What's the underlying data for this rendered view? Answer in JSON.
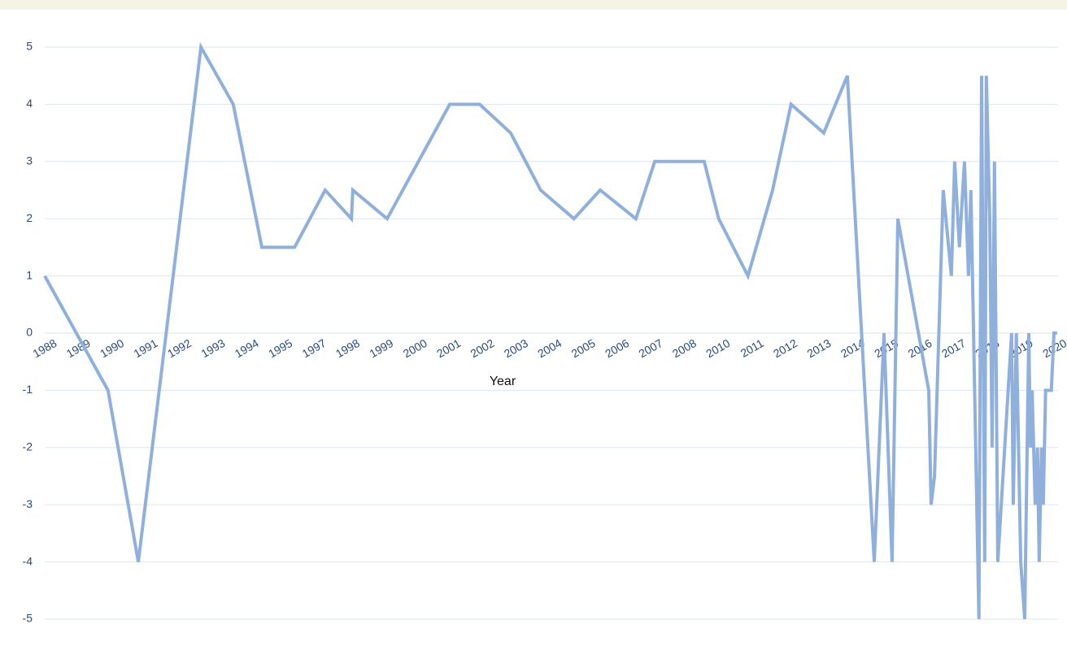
{
  "chart_data": {
    "type": "line",
    "x_label": "Year",
    "x": [
      0,
      1.88,
      2.78,
      4.64,
      5.6,
      6.45,
      7.42,
      8.33,
      9.11,
      9.15,
      10.17,
      12.03,
      12.92,
      13.84,
      14.73,
      15.72,
      16.5,
      17.56,
      18.12,
      19.59,
      20.02,
      20.89,
      21.62,
      22.17,
      23.14,
      23.84,
      24.64,
      24.93,
      25.17,
      25.34,
      26.26,
      26.33,
      26.43,
      26.69,
      26.93,
      27.03,
      27.17,
      27.32,
      27.44,
      27.51,
      27.75,
      27.83,
      27.92,
      27.97,
      28.07,
      28.14,
      28.21,
      28.31,
      28.72,
      28.77,
      28.86,
      28.99,
      29.11,
      29.23,
      29.28,
      29.33,
      29.42,
      29.49,
      29.54,
      29.61,
      29.66,
      29.73,
      29.9,
      29.98,
      30.07
    ],
    "values": [
      1,
      -1,
      -4,
      5,
      4,
      1.5,
      1.5,
      2.5,
      2,
      2.5,
      2,
      4,
      4,
      3.5,
      2.5,
      2,
      2.5,
      2,
      3,
      3,
      2,
      1,
      2.5,
      4,
      3.5,
      4.5,
      -4,
      0,
      -4,
      2,
      -1,
      -3,
      -2.5,
      2.5,
      1,
      3,
      1.5,
      3,
      1,
      2.5,
      -5,
      4.5,
      -4,
      4.5,
      2,
      -2,
      3,
      -4,
      0,
      -3,
      0,
      -4,
      -5,
      0,
      -2,
      -1,
      -3,
      -2,
      -4,
      -2,
      -3,
      -1,
      -1,
      0,
      0
    ],
    "color": "#8fb0dd",
    "xlim": [
      0,
      30.1
    ],
    "xticks": [
      {
        "value": 0,
        "label": "1988"
      },
      {
        "value": 1,
        "label": "1989"
      },
      {
        "value": 2,
        "label": "1990"
      },
      {
        "value": 3,
        "label": "1991"
      },
      {
        "value": 4,
        "label": "1992"
      },
      {
        "value": 5,
        "label": "1993"
      },
      {
        "value": 6,
        "label": "1994"
      },
      {
        "value": 7,
        "label": "1995"
      },
      {
        "value": 8,
        "label": "1997"
      },
      {
        "value": 9,
        "label": "1998"
      },
      {
        "value": 10,
        "label": "1999"
      },
      {
        "value": 11,
        "label": "2000"
      },
      {
        "value": 12,
        "label": "2001"
      },
      {
        "value": 13,
        "label": "2002"
      },
      {
        "value": 14,
        "label": "2003"
      },
      {
        "value": 15,
        "label": "2004"
      },
      {
        "value": 16,
        "label": "2005"
      },
      {
        "value": 17,
        "label": "2006"
      },
      {
        "value": 18,
        "label": "2007"
      },
      {
        "value": 19,
        "label": "2008"
      },
      {
        "value": 20,
        "label": "2010"
      },
      {
        "value": 21,
        "label": "2011"
      },
      {
        "value": 22,
        "label": "2012"
      },
      {
        "value": 23,
        "label": "2013"
      },
      {
        "value": 24,
        "label": "2014"
      },
      {
        "value": 25,
        "label": "2015"
      },
      {
        "value": 26,
        "label": "2016"
      },
      {
        "value": 27,
        "label": "2017"
      },
      {
        "value": 28,
        "label": "2018"
      },
      {
        "value": 29,
        "label": "2019"
      },
      {
        "value": 30,
        "label": "2020"
      }
    ],
    "ylim": [
      -5,
      5
    ],
    "yticks": [
      -5,
      -4,
      -3,
      -2,
      -1,
      0,
      1,
      2,
      3,
      4,
      5
    ],
    "grid": true
  }
}
